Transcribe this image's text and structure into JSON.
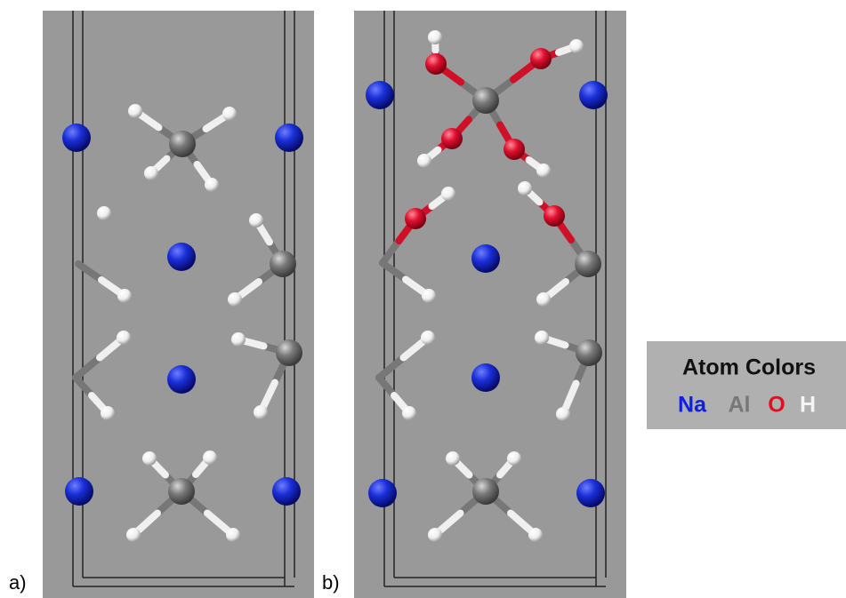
{
  "panels": [
    {
      "label": "a)"
    },
    {
      "label": "b)"
    }
  ],
  "legend": {
    "title": "Atom Colors",
    "items": [
      "Na",
      "Al",
      "O",
      "H"
    ]
  }
}
